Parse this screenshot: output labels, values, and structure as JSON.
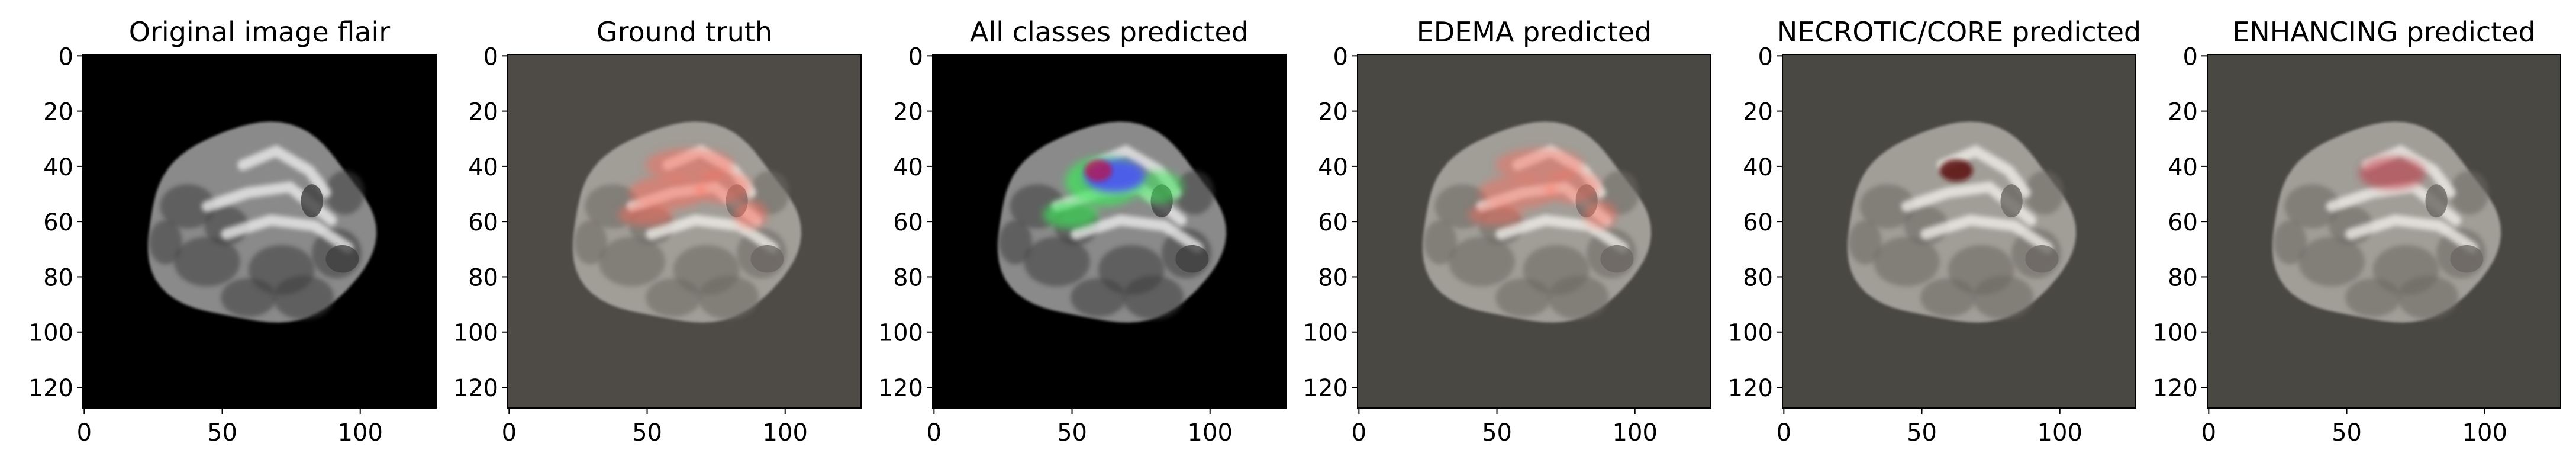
{
  "panels": [
    {
      "key": "flair",
      "title": "Original image flair",
      "background": "#000000",
      "overlay": "none"
    },
    {
      "key": "gt",
      "title": "Ground truth",
      "background": "#4e4a45",
      "overlay": "ground-truth"
    },
    {
      "key": "all",
      "title": "All classes predicted",
      "background": "#000000",
      "overlay": "all-classes"
    },
    {
      "key": "edema",
      "title": "EDEMA predicted",
      "background": "#4a4843",
      "overlay": "edema"
    },
    {
      "key": "necrotic",
      "title": "NECROTIC/CORE predicted",
      "background": "#4a4843",
      "overlay": "necrotic"
    },
    {
      "key": "enhancing",
      "title": "ENHANCING predicted",
      "background": "#4a4843",
      "overlay": "enhancing"
    }
  ],
  "axes": {
    "x_ticks": [
      "0",
      "50",
      "100"
    ],
    "x_tick_values": [
      0,
      50,
      100
    ],
    "y_ticks": [
      "0",
      "20",
      "40",
      "60",
      "80",
      "100",
      "120"
    ],
    "y_tick_values": [
      0,
      20,
      40,
      60,
      80,
      100,
      120
    ],
    "range": [
      0,
      128
    ]
  },
  "colors": {
    "edema": "#ff6b5a",
    "necrotic": "#5a0a0a",
    "enhancing": "#c23040",
    "all_edema": "#3ce85a",
    "all_core": "#4b4bff",
    "all_enh": "#c01040"
  }
}
